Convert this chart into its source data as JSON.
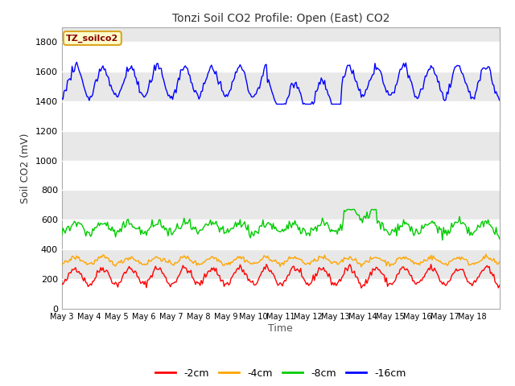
{
  "title": "Tonzi Soil CO2 Profile: Open (East) CO2",
  "ylabel": "Soil CO2 (mV)",
  "xlabel": "Time",
  "annotation": "TZ_soilco2",
  "annotation_color": "#8B0000",
  "annotation_bg": "#FFFFCC",
  "annotation_border": "#DAA520",
  "ylim": [
    0,
    1900
  ],
  "yticks": [
    0,
    200,
    400,
    600,
    800,
    1000,
    1200,
    1400,
    1600,
    1800
  ],
  "fig_color": "#FFFFFF",
  "plot_bg": "#E8E8E8",
  "band_color": "#D8D8D8",
  "grid_color": "#FFFFFF",
  "lines": [
    {
      "label": "-2cm",
      "color": "#FF0000"
    },
    {
      "label": "-4cm",
      "color": "#FFA500"
    },
    {
      "label": "-8cm",
      "color": "#00CC00"
    },
    {
      "label": "-16cm",
      "color": "#0000FF"
    }
  ],
  "legend_colors": [
    "#FF0000",
    "#FFA500",
    "#00CC00",
    "#0000FF"
  ],
  "legend_labels": [
    "-2cm",
    "-4cm",
    "-8cm",
    "-16cm"
  ],
  "xticklabels": [
    "May 3",
    "May 4",
    "May 5",
    "May 6",
    "May 7",
    "May 8",
    "May 9",
    "May 10",
    "May 11",
    "May 12",
    "May 13",
    "May 14",
    "May 15",
    "May 16",
    "May 17",
    "May 18"
  ],
  "n_days": 16,
  "seed": 42
}
